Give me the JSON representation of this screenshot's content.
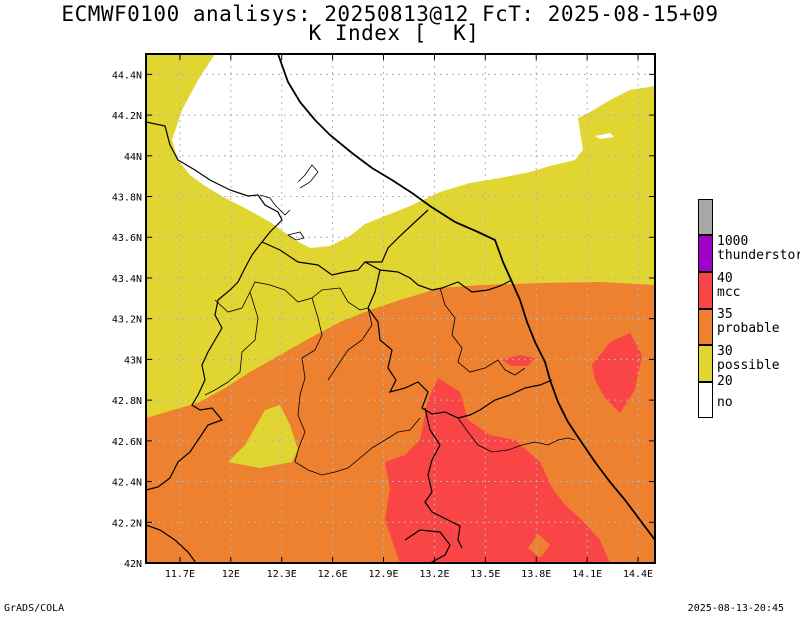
{
  "title_line1": "ECMWF0100 analisys: 20250813@12 FcT: 2025-08-15+09",
  "title_line2": "K Index [  K]",
  "footer_left": "GrADS/COLA",
  "footer_right": "2025-08-13-20:45",
  "map": {
    "lon_ticks": [
      "11.7E",
      "12E",
      "12.3E",
      "12.6E",
      "12.9E",
      "13.2E",
      "13.5E",
      "13.8E",
      "14.1E",
      "14.4E"
    ],
    "lat_ticks": [
      "42N",
      "42.2N",
      "42.4N",
      "42.6N",
      "42.8N",
      "43N",
      "43.2N",
      "43.4N",
      "43.6N",
      "43.8N",
      "44N",
      "44.2N",
      "44.4N"
    ],
    "lon_range": [
      11.5,
      14.5
    ],
    "lat_range": [
      42.0,
      44.5
    ],
    "grid": true
  },
  "colors": {
    "no": "#ffffff",
    "possible": "#e1d532",
    "probable": "#ee8130",
    "mcc": "#f94545",
    "thunderstorm": "#a000c8",
    "above": "#a8a8a8"
  },
  "legend": {
    "items": [
      {
        "value": "1000",
        "label": "thunderstorm"
      },
      {
        "value": "40",
        "label": "mcc"
      },
      {
        "value": "35",
        "label": "probable"
      },
      {
        "value": "30",
        "label": "possible"
      },
      {
        "value": "20",
        "label": "no"
      }
    ]
  }
}
